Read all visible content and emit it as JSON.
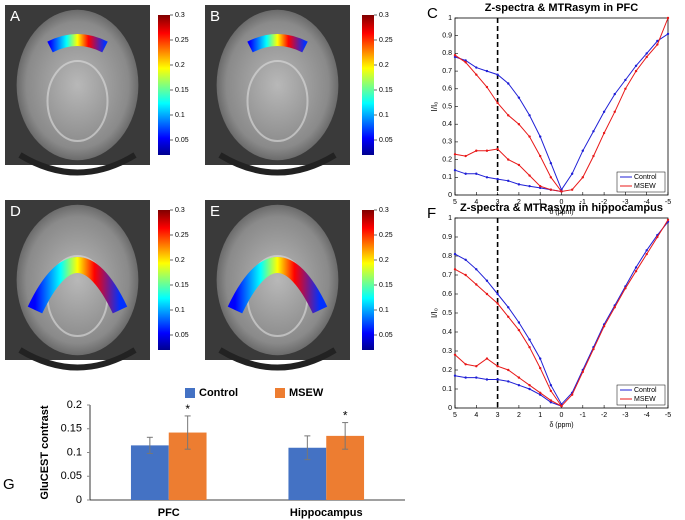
{
  "chart_data": [
    {
      "type": "image",
      "panel": "A",
      "region": "top",
      "clim": [
        0.02,
        0.3
      ],
      "cticks": [
        0.05,
        0.1,
        0.15,
        0.2,
        0.25,
        0.3
      ]
    },
    {
      "type": "image",
      "panel": "B",
      "region": "top",
      "clim": [
        0.02,
        0.3
      ],
      "cticks": [
        0.05,
        0.1,
        0.15,
        0.2,
        0.25,
        0.3
      ]
    },
    {
      "type": "image",
      "panel": "D",
      "region": "middle",
      "clim": [
        0.02,
        0.3
      ],
      "cticks": [
        0.05,
        0.1,
        0.15,
        0.2,
        0.25,
        0.3
      ]
    },
    {
      "type": "image",
      "panel": "E",
      "region": "middle",
      "clim": [
        0.02,
        0.3
      ],
      "cticks": [
        0.05,
        0.1,
        0.15,
        0.2,
        0.25,
        0.3
      ]
    },
    {
      "type": "line",
      "panel": "C",
      "title": "Z-spectra & MTRasym in PFC",
      "xlabel": "δ (ppm)",
      "ylabel": "I/I₀",
      "x": [
        5,
        4.5,
        4,
        3.5,
        3,
        2.5,
        2,
        1.5,
        1,
        0.5,
        0,
        -0.5,
        -1,
        -1.5,
        -2,
        -2.5,
        -3,
        -3.5,
        -4,
        -4.5,
        -5
      ],
      "xlim": [
        5,
        -5
      ],
      "xticks": [
        5,
        4,
        3,
        2,
        1,
        0,
        -1,
        -2,
        -3,
        -4,
        -5
      ],
      "ylim": [
        0,
        1
      ],
      "yticks": [
        0,
        0.1,
        0.2,
        0.3,
        0.4,
        0.5,
        0.6,
        0.7,
        0.8,
        0.9,
        1
      ],
      "vline": 3,
      "legend": "lower right",
      "series": [
        {
          "name": "Control",
          "color": "#1f1fd6",
          "values": [
            0.78,
            0.76,
            0.72,
            0.7,
            0.68,
            0.63,
            0.55,
            0.45,
            0.33,
            0.18,
            0.03,
            0.12,
            0.25,
            0.36,
            0.47,
            0.57,
            0.65,
            0.73,
            0.8,
            0.87,
            0.91
          ]
        },
        {
          "name": "MSEW",
          "color": "#e81818",
          "values": [
            0.79,
            0.75,
            0.68,
            0.61,
            0.52,
            0.45,
            0.4,
            0.33,
            0.22,
            0.1,
            0.02,
            0.03,
            0.1,
            0.22,
            0.35,
            0.47,
            0.6,
            0.7,
            0.78,
            0.85,
            1.0
          ]
        },
        {
          "name": "Control",
          "color": "#1f1fd6",
          "values": [
            0.14,
            0.12,
            0.12,
            0.1,
            0.09,
            0.08,
            0.06,
            0.05,
            0.04,
            0.03,
            0.02,
            null,
            null,
            null,
            null,
            null,
            null,
            null,
            null,
            null,
            null
          ]
        },
        {
          "name": "MSEW",
          "color": "#e81818",
          "values": [
            0.23,
            0.22,
            0.25,
            0.25,
            0.26,
            0.2,
            0.17,
            0.11,
            0.05,
            0.03,
            0.02,
            null,
            null,
            null,
            null,
            null,
            null,
            null,
            null,
            null,
            null
          ]
        }
      ]
    },
    {
      "type": "line",
      "panel": "F",
      "title": "Z-spectra & MTRasym in hippocampus",
      "xlabel": "δ (ppm)",
      "ylabel": "I/I₀",
      "x": [
        5,
        4.5,
        4,
        3.5,
        3,
        2.5,
        2,
        1.5,
        1,
        0.5,
        0,
        -0.5,
        -1,
        -1.5,
        -2,
        -2.5,
        -3,
        -3.5,
        -4,
        -4.5,
        -5
      ],
      "xlim": [
        5,
        -5
      ],
      "xticks": [
        5,
        4,
        3,
        2,
        1,
        0,
        -1,
        -2,
        -3,
        -4,
        -5
      ],
      "ylim": [
        0,
        1
      ],
      "yticks": [
        0,
        0.1,
        0.2,
        0.3,
        0.4,
        0.5,
        0.6,
        0.7,
        0.8,
        0.9,
        1
      ],
      "vline": 3,
      "legend": "lower right",
      "series": [
        {
          "name": "Control",
          "color": "#1f1fd6",
          "values": [
            0.81,
            0.78,
            0.73,
            0.67,
            0.6,
            0.53,
            0.45,
            0.36,
            0.26,
            0.12,
            0.02,
            0.08,
            0.2,
            0.32,
            0.44,
            0.54,
            0.64,
            0.74,
            0.83,
            0.91,
            0.98
          ]
        },
        {
          "name": "MSEW",
          "color": "#e81818",
          "values": [
            0.73,
            0.7,
            0.65,
            0.6,
            0.55,
            0.48,
            0.41,
            0.32,
            0.21,
            0.09,
            0.01,
            0.07,
            0.19,
            0.31,
            0.43,
            0.53,
            0.63,
            0.72,
            0.81,
            0.9,
            0.99
          ]
        },
        {
          "name": "Control",
          "color": "#1f1fd6",
          "values": [
            0.17,
            0.16,
            0.16,
            0.15,
            0.15,
            0.14,
            0.12,
            0.1,
            0.07,
            0.03,
            0.01,
            null,
            null,
            null,
            null,
            null,
            null,
            null,
            null,
            null,
            null
          ]
        },
        {
          "name": "MSEW",
          "color": "#e81818",
          "values": [
            0.28,
            0.23,
            0.22,
            0.26,
            0.22,
            0.2,
            0.16,
            0.12,
            0.08,
            0.04,
            0.01,
            null,
            null,
            null,
            null,
            null,
            null,
            null,
            null,
            null,
            null
          ]
        }
      ]
    },
    {
      "type": "bar",
      "panel": "G",
      "ylabel": "GluCEST contrast",
      "categories": [
        "PFC",
        "Hippocampus"
      ],
      "ylim": [
        0,
        0.2
      ],
      "yticks": [
        0,
        0.05,
        0.1,
        0.15,
        0.2
      ],
      "legend": "top",
      "series": [
        {
          "name": "Control",
          "color": "#4472c4",
          "values": [
            0.115,
            0.11
          ],
          "errors": [
            0.017,
            0.025
          ]
        },
        {
          "name": "MSEW",
          "color": "#ed7d31",
          "values": [
            0.142,
            0.135
          ],
          "errors": [
            0.035,
            0.028
          ],
          "annotations": [
            "*",
            "*"
          ]
        }
      ]
    }
  ]
}
